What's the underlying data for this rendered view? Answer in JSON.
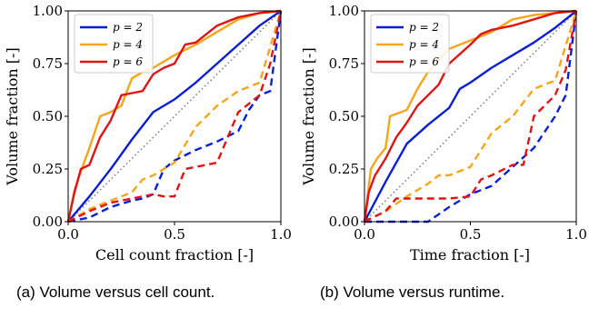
{
  "captions": [
    "(a) Volume versus cell count.",
    "(b) Volume versus runtime."
  ],
  "chart_data": [
    {
      "type": "line",
      "xlabel": "Cell count fraction [-]",
      "ylabel": "Volume fraction [-]",
      "xlim": [
        0.0,
        1.0
      ],
      "ylim": [
        0.0,
        1.0
      ],
      "xticks": [
        "0.0",
        "0.5",
        "1.0"
      ],
      "yticks": [
        "0.00",
        "0.25",
        "0.50",
        "0.75",
        "1.00"
      ],
      "grid": false,
      "legend_position": "top-left",
      "reference_line": {
        "style": "dotted",
        "color": "#808080",
        "x": [
          0,
          1
        ],
        "y": [
          0,
          1
        ]
      },
      "series": [
        {
          "name": "p = 2",
          "color": "#0a1ed6",
          "style": "solid",
          "x": [
            0,
            0.1,
            0.2,
            0.3,
            0.4,
            0.5,
            0.6,
            0.7,
            0.8,
            0.9,
            1.0
          ],
          "y": [
            0,
            0.12,
            0.25,
            0.39,
            0.52,
            0.58,
            0.66,
            0.75,
            0.84,
            0.93,
            1.0
          ]
        },
        {
          "name": "p = 4",
          "color": "#f7a51b",
          "style": "solid",
          "x": [
            0,
            0.03,
            0.06,
            0.1,
            0.15,
            0.2,
            0.25,
            0.3,
            0.35,
            0.4,
            0.5,
            0.6,
            0.7,
            0.8,
            0.9,
            1.0
          ],
          "y": [
            0,
            0.15,
            0.24,
            0.35,
            0.5,
            0.52,
            0.55,
            0.68,
            0.71,
            0.73,
            0.79,
            0.84,
            0.9,
            0.96,
            0.99,
            1.0
          ]
        },
        {
          "name": "p = 6",
          "color": "#e01414",
          "style": "solid",
          "x": [
            0,
            0.03,
            0.06,
            0.1,
            0.15,
            0.2,
            0.25,
            0.3,
            0.35,
            0.4,
            0.45,
            0.5,
            0.55,
            0.6,
            0.7,
            0.8,
            0.9,
            1.0
          ],
          "y": [
            0,
            0.14,
            0.25,
            0.27,
            0.4,
            0.48,
            0.6,
            0.61,
            0.62,
            0.7,
            0.73,
            0.75,
            0.84,
            0.85,
            0.93,
            0.97,
            0.99,
            1.0
          ]
        },
        {
          "name": "p = 2 (dashed)",
          "color": "#0a1ed6",
          "style": "dashed",
          "x": [
            0,
            0.1,
            0.2,
            0.3,
            0.35,
            0.4,
            0.45,
            0.5,
            0.6,
            0.7,
            0.8,
            0.85,
            0.9,
            0.95,
            1.0
          ],
          "y": [
            0,
            0.02,
            0.07,
            0.1,
            0.11,
            0.13,
            0.25,
            0.29,
            0.34,
            0.38,
            0.43,
            0.53,
            0.6,
            0.62,
            1.0
          ]
        },
        {
          "name": "p = 4 (dashed)",
          "color": "#f7a51b",
          "style": "dashed",
          "x": [
            0,
            0.1,
            0.2,
            0.25,
            0.3,
            0.35,
            0.4,
            0.5,
            0.6,
            0.7,
            0.8,
            0.9,
            1.0
          ],
          "y": [
            0,
            0.06,
            0.1,
            0.12,
            0.14,
            0.2,
            0.22,
            0.28,
            0.45,
            0.55,
            0.62,
            0.66,
            1.0
          ]
        },
        {
          "name": "p = 6 (dashed)",
          "color": "#e01414",
          "style": "dashed",
          "x": [
            0,
            0.1,
            0.2,
            0.3,
            0.35,
            0.4,
            0.45,
            0.5,
            0.55,
            0.6,
            0.65,
            0.7,
            0.8,
            0.9,
            0.95,
            1.0
          ],
          "y": [
            0,
            0.05,
            0.09,
            0.11,
            0.12,
            0.13,
            0.12,
            0.12,
            0.25,
            0.26,
            0.27,
            0.28,
            0.52,
            0.6,
            0.75,
            1.0
          ]
        }
      ]
    },
    {
      "type": "line",
      "xlabel": "Time fraction [-]",
      "ylabel": "Volume fraction [-]",
      "xlim": [
        0.0,
        1.0
      ],
      "ylim": [
        0.0,
        1.0
      ],
      "xticks": [
        "0.0",
        "0.5",
        "1.0"
      ],
      "yticks": [
        "0.00",
        "0.25",
        "0.50",
        "0.75",
        "1.00"
      ],
      "grid": false,
      "legend_position": "top-left",
      "reference_line": {
        "style": "dotted",
        "color": "#808080",
        "x": [
          0,
          1
        ],
        "y": [
          0,
          1
        ]
      },
      "series": [
        {
          "name": "p = 2",
          "color": "#0a1ed6",
          "style": "solid",
          "x": [
            0,
            0.1,
            0.2,
            0.3,
            0.4,
            0.45,
            0.5,
            0.6,
            0.7,
            0.8,
            0.9,
            1.0
          ],
          "y": [
            0,
            0.19,
            0.37,
            0.46,
            0.54,
            0.63,
            0.66,
            0.73,
            0.79,
            0.85,
            0.92,
            1.0
          ]
        },
        {
          "name": "p = 4",
          "color": "#f7a51b",
          "style": "solid",
          "x": [
            0,
            0.03,
            0.06,
            0.1,
            0.12,
            0.2,
            0.25,
            0.3,
            0.4,
            0.5,
            0.6,
            0.7,
            0.8,
            0.9,
            1.0
          ],
          "y": [
            0,
            0.25,
            0.3,
            0.35,
            0.5,
            0.53,
            0.63,
            0.71,
            0.82,
            0.86,
            0.9,
            0.96,
            0.98,
            0.99,
            1.0
          ]
        },
        {
          "name": "p = 6",
          "color": "#e01414",
          "style": "solid",
          "x": [
            0,
            0.02,
            0.05,
            0.1,
            0.15,
            0.2,
            0.25,
            0.3,
            0.35,
            0.4,
            0.5,
            0.55,
            0.6,
            0.7,
            0.8,
            0.9,
            1.0
          ],
          "y": [
            0,
            0.14,
            0.22,
            0.3,
            0.4,
            0.47,
            0.55,
            0.6,
            0.65,
            0.75,
            0.84,
            0.89,
            0.91,
            0.93,
            0.96,
            0.99,
            1.0
          ]
        },
        {
          "name": "p = 2 (dashed)",
          "color": "#0a1ed6",
          "style": "dashed",
          "x": [
            0,
            0.3,
            0.4,
            0.5,
            0.6,
            0.7,
            0.8,
            0.9,
            0.95,
            1.0
          ],
          "y": [
            0,
            0.0,
            0.07,
            0.13,
            0.17,
            0.26,
            0.35,
            0.5,
            0.6,
            1.0
          ]
        },
        {
          "name": "p = 4 (dashed)",
          "color": "#f7a51b",
          "style": "dashed",
          "x": [
            0,
            0.1,
            0.2,
            0.3,
            0.35,
            0.4,
            0.5,
            0.6,
            0.7,
            0.8,
            0.9,
            1.0
          ],
          "y": [
            0,
            0.05,
            0.12,
            0.18,
            0.22,
            0.22,
            0.26,
            0.42,
            0.5,
            0.63,
            0.67,
            1.0
          ]
        },
        {
          "name": "p = 6 (dashed)",
          "color": "#e01414",
          "style": "dashed",
          "x": [
            0,
            0.1,
            0.15,
            0.3,
            0.4,
            0.5,
            0.55,
            0.6,
            0.7,
            0.75,
            0.8,
            0.9,
            0.95,
            1.0
          ],
          "y": [
            0,
            0.05,
            0.11,
            0.11,
            0.11,
            0.12,
            0.2,
            0.22,
            0.27,
            0.27,
            0.5,
            0.6,
            0.72,
            1.0
          ]
        }
      ]
    }
  ],
  "legend": [
    {
      "label": "p = 2",
      "color": "#0a1ed6"
    },
    {
      "label": "p = 4",
      "color": "#f7a51b"
    },
    {
      "label": "p = 6",
      "color": "#e01414"
    }
  ]
}
